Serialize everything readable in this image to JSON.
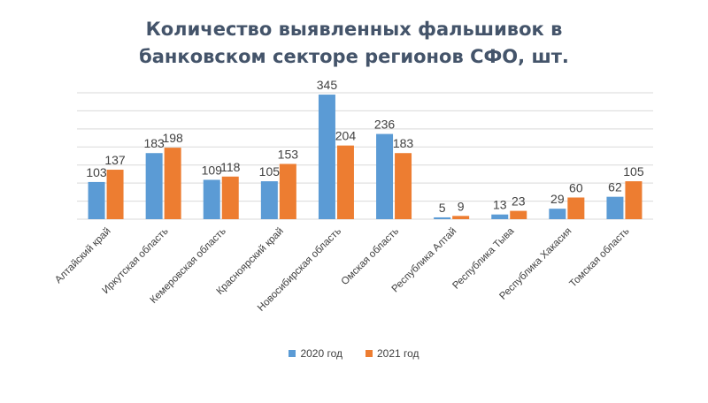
{
  "chart_data": {
    "type": "bar",
    "title_lines": [
      "Количество выявленных фальшивок в",
      "банковском секторе регионов СФО, шт."
    ],
    "categories": [
      "Алтайский край",
      "Иркутская область",
      "Кемеровская область",
      "Красноярский край",
      "Новосибирская область",
      "Омская область",
      "Республика Алтай",
      "Республика Тыва",
      "Республика Хакасия",
      "Томская область"
    ],
    "series": [
      {
        "name": "2020 год",
        "color": "#5b9bd5",
        "values": [
          103,
          183,
          109,
          105,
          345,
          236,
          5,
          13,
          29,
          62
        ]
      },
      {
        "name": "2021 год",
        "color": "#ed7d31",
        "values": [
          137,
          198,
          118,
          153,
          204,
          183,
          9,
          23,
          60,
          105
        ]
      }
    ],
    "ylim": [
      0,
      350
    ],
    "gridlines": true,
    "legend_position": "bottom"
  }
}
